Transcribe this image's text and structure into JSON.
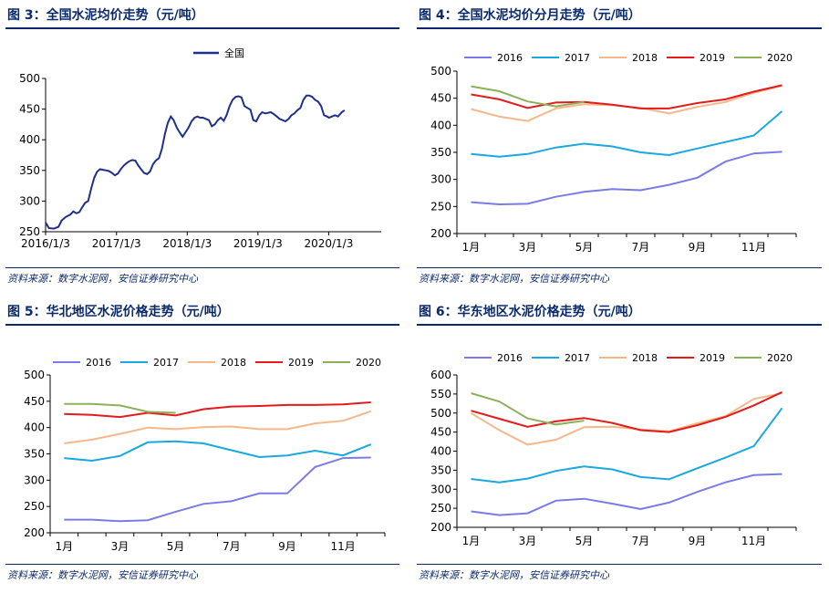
{
  "panels": [
    {
      "title": "图 3：全国水泥均价走势（元/吨）",
      "source": "资料来源：数字水泥网，安信证券研究中心"
    },
    {
      "title": "图 4：全国水泥均价分月走势（元/吨）",
      "source": "资料来源：数字水泥网，安信证券研究中心"
    },
    {
      "title": "图 5：华北地区水泥价格走势（元/吨）",
      "source": "资料来源：数字水泥网，安信证券研究中心"
    },
    {
      "title": "图 6：华东地区水泥价格走势（元/吨）",
      "source": "资料来源：数字水泥网，安信证券研究中心"
    }
  ],
  "colors": {
    "2016": "#7b7be8",
    "2017": "#1aa8e0",
    "2018": "#f5b88a",
    "2019": "#e31b1b",
    "2020": "#8db05a",
    "national": "#1f2f8c",
    "heading": "#0b2a6b"
  },
  "chart_data": [
    {
      "type": "line",
      "ylim": [
        250,
        500
      ],
      "yticks": [
        250,
        300,
        350,
        400,
        450,
        500
      ],
      "xlim": [
        "2016/1/3",
        "2020/9/30"
      ],
      "xticks": [
        "2016/1/3",
        "2017/1/3",
        "2018/1/3",
        "2019/1/3",
        "2020/1/3"
      ],
      "series": [
        {
          "name": "全国",
          "points": [
            [
              "2016/01/03",
              265
            ],
            [
              "2016/01/20",
              256
            ],
            [
              "2016/02/15",
              255
            ],
            [
              "2016/03/10",
              258
            ],
            [
              "2016/03/25",
              268
            ],
            [
              "2016/04/15",
              274
            ],
            [
              "2016/05/10",
              278
            ],
            [
              "2016/05/25",
              283
            ],
            [
              "2016/06/10",
              280
            ],
            [
              "2016/06/25",
              282
            ],
            [
              "2016/07/10",
              290
            ],
            [
              "2016/07/25",
              297
            ],
            [
              "2016/08/10",
              300
            ],
            [
              "2016/08/25",
              320
            ],
            [
              "2016/09/10",
              338
            ],
            [
              "2016/09/25",
              348
            ],
            [
              "2016/10/10",
              352
            ],
            [
              "2016/10/25",
              351
            ],
            [
              "2016/11/10",
              350
            ],
            [
              "2016/11/25",
              349
            ],
            [
              "2016/12/10",
              346
            ],
            [
              "2016/12/25",
              342
            ],
            [
              "2017/01/10",
              345
            ],
            [
              "2017/01/25",
              352
            ],
            [
              "2017/02/10",
              358
            ],
            [
              "2017/02/25",
              362
            ],
            [
              "2017/03/10",
              365
            ],
            [
              "2017/03/25",
              367
            ],
            [
              "2017/04/10",
              366
            ],
            [
              "2017/04/25",
              358
            ],
            [
              "2017/05/10",
              352
            ],
            [
              "2017/05/25",
              346
            ],
            [
              "2017/06/10",
              344
            ],
            [
              "2017/06/25",
              348
            ],
            [
              "2017/07/10",
              360
            ],
            [
              "2017/07/25",
              366
            ],
            [
              "2017/08/10",
              370
            ],
            [
              "2017/08/25",
              385
            ],
            [
              "2017/09/10",
              410
            ],
            [
              "2017/09/25",
              428
            ],
            [
              "2017/10/10",
              438
            ],
            [
              "2017/10/25",
              432
            ],
            [
              "2017/11/10",
              420
            ],
            [
              "2017/11/25",
              412
            ],
            [
              "2017/12/10",
              405
            ],
            [
              "2017/12/25",
              412
            ],
            [
              "2018/01/10",
              420
            ],
            [
              "2018/01/25",
              430
            ],
            [
              "2018/02/10",
              436
            ],
            [
              "2018/02/25",
              438
            ],
            [
              "2018/03/10",
              436
            ],
            [
              "2018/03/25",
              436
            ],
            [
              "2018/04/10",
              434
            ],
            [
              "2018/04/25",
              432
            ],
            [
              "2018/05/10",
              422
            ],
            [
              "2018/05/25",
              425
            ],
            [
              "2018/06/10",
              432
            ],
            [
              "2018/06/25",
              436
            ],
            [
              "2018/07/10",
              431
            ],
            [
              "2018/07/25",
              440
            ],
            [
              "2018/08/10",
              455
            ],
            [
              "2018/08/25",
              465
            ],
            [
              "2018/09/10",
              470
            ],
            [
              "2018/09/25",
              471
            ],
            [
              "2018/10/10",
              469
            ],
            [
              "2018/10/25",
              455
            ],
            [
              "2018/11/10",
              452
            ],
            [
              "2018/11/25",
              449
            ],
            [
              "2018/12/10",
              432
            ],
            [
              "2018/12/25",
              430
            ],
            [
              "2019/01/10",
              440
            ],
            [
              "2019/01/25",
              445
            ],
            [
              "2019/02/10",
              443
            ],
            [
              "2019/02/25",
              444
            ],
            [
              "2019/03/10",
              445
            ],
            [
              "2019/03/25",
              442
            ],
            [
              "2019/04/10",
              438
            ],
            [
              "2019/04/25",
              434
            ],
            [
              "2019/05/10",
              432
            ],
            [
              "2019/05/25",
              430
            ],
            [
              "2019/06/10",
              434
            ],
            [
              "2019/06/25",
              440
            ],
            [
              "2019/07/10",
              443
            ],
            [
              "2019/07/25",
              448
            ],
            [
              "2019/08/10",
              452
            ],
            [
              "2019/08/25",
              465
            ],
            [
              "2019/09/10",
              472
            ],
            [
              "2019/09/25",
              472
            ],
            [
              "2019/10/10",
              470
            ],
            [
              "2019/10/25",
              465
            ],
            [
              "2019/11/10",
              462
            ],
            [
              "2019/11/25",
              455
            ],
            [
              "2019/12/10",
              440
            ],
            [
              "2019/12/25",
              438
            ],
            [
              "2020/01/05",
              436
            ],
            [
              "2020/01/20",
              438
            ],
            [
              "2020/02/05",
              440
            ],
            [
              "2020/02/20",
              438
            ],
            [
              "2020/03/10",
              445
            ],
            [
              "2020/03/25",
              448
            ]
          ]
        }
      ]
    },
    {
      "type": "line",
      "categories": [
        "1月",
        "2月",
        "3月",
        "4月",
        "5月",
        "6月",
        "7月",
        "8月",
        "9月",
        "10月",
        "11月",
        "12月"
      ],
      "xtick_labels": [
        "1月",
        "3月",
        "5月",
        "7月",
        "9月",
        "11月"
      ],
      "ylim": [
        200,
        500
      ],
      "yticks": [
        200,
        250,
        300,
        350,
        400,
        450,
        500
      ],
      "legend": "top",
      "series": [
        {
          "name": "2016",
          "values": [
            258,
            254,
            255,
            268,
            277,
            282,
            280,
            290,
            303,
            333,
            348,
            351
          ]
        },
        {
          "name": "2017",
          "values": [
            347,
            342,
            347,
            359,
            366,
            361,
            350,
            345,
            357,
            369,
            381,
            426
          ]
        },
        {
          "name": "2018",
          "values": [
            430,
            416,
            408,
            431,
            439,
            437,
            432,
            422,
            434,
            443,
            460,
            473
          ]
        },
        {
          "name": "2019",
          "values": [
            457,
            448,
            432,
            442,
            443,
            438,
            431,
            431,
            441,
            448,
            462,
            474
          ]
        },
        {
          "name": "2020",
          "values": [
            472,
            463,
            444,
            435,
            443,
            null,
            null,
            null,
            null,
            null,
            null,
            null
          ]
        }
      ]
    },
    {
      "type": "line",
      "categories": [
        "1月",
        "2月",
        "3月",
        "4月",
        "5月",
        "6月",
        "7月",
        "8月",
        "9月",
        "10月",
        "11月",
        "12月"
      ],
      "xtick_labels": [
        "1月",
        "3月",
        "5月",
        "7月",
        "9月",
        "11月"
      ],
      "ylim": [
        200,
        500
      ],
      "yticks": [
        200,
        250,
        300,
        350,
        400,
        450,
        500
      ],
      "legend": "top",
      "series": [
        {
          "name": "2016",
          "values": [
            225,
            225,
            222,
            224,
            240,
            255,
            260,
            275,
            275,
            325,
            342,
            343
          ]
        },
        {
          "name": "2017",
          "values": [
            342,
            337,
            346,
            372,
            374,
            370,
            357,
            344,
            347,
            356,
            347,
            368
          ]
        },
        {
          "name": "2018",
          "values": [
            370,
            377,
            388,
            400,
            397,
            401,
            402,
            397,
            397,
            408,
            413,
            431
          ]
        },
        {
          "name": "2019",
          "values": [
            426,
            424,
            420,
            428,
            423,
            435,
            440,
            441,
            443,
            443,
            444,
            448
          ]
        },
        {
          "name": "2020",
          "values": [
            445,
            445,
            442,
            430,
            428,
            null,
            null,
            null,
            null,
            null,
            null,
            null
          ]
        }
      ]
    },
    {
      "type": "line",
      "categories": [
        "1月",
        "2月",
        "3月",
        "4月",
        "5月",
        "6月",
        "7月",
        "8月",
        "9月",
        "10月",
        "11月",
        "12月"
      ],
      "xtick_labels": [
        "1月",
        "3月",
        "5月",
        "7月",
        "9月",
        "11月"
      ],
      "ylim": [
        200,
        600
      ],
      "yticks": [
        200,
        250,
        300,
        350,
        400,
        450,
        500,
        550,
        600
      ],
      "legend": "top",
      "series": [
        {
          "name": "2016",
          "values": [
            242,
            232,
            237,
            270,
            275,
            262,
            248,
            265,
            293,
            318,
            337,
            340
          ]
        },
        {
          "name": "2017",
          "values": [
            327,
            318,
            328,
            348,
            360,
            352,
            332,
            326,
            355,
            383,
            413,
            513
          ]
        },
        {
          "name": "2018",
          "values": [
            500,
            455,
            417,
            430,
            463,
            464,
            457,
            452,
            473,
            492,
            537,
            552
          ]
        },
        {
          "name": "2019",
          "values": [
            506,
            485,
            464,
            478,
            487,
            474,
            455,
            450,
            468,
            490,
            520,
            555
          ]
        },
        {
          "name": "2020",
          "values": [
            552,
            530,
            486,
            470,
            480,
            null,
            null,
            null,
            null,
            null,
            null,
            null
          ]
        }
      ]
    }
  ]
}
